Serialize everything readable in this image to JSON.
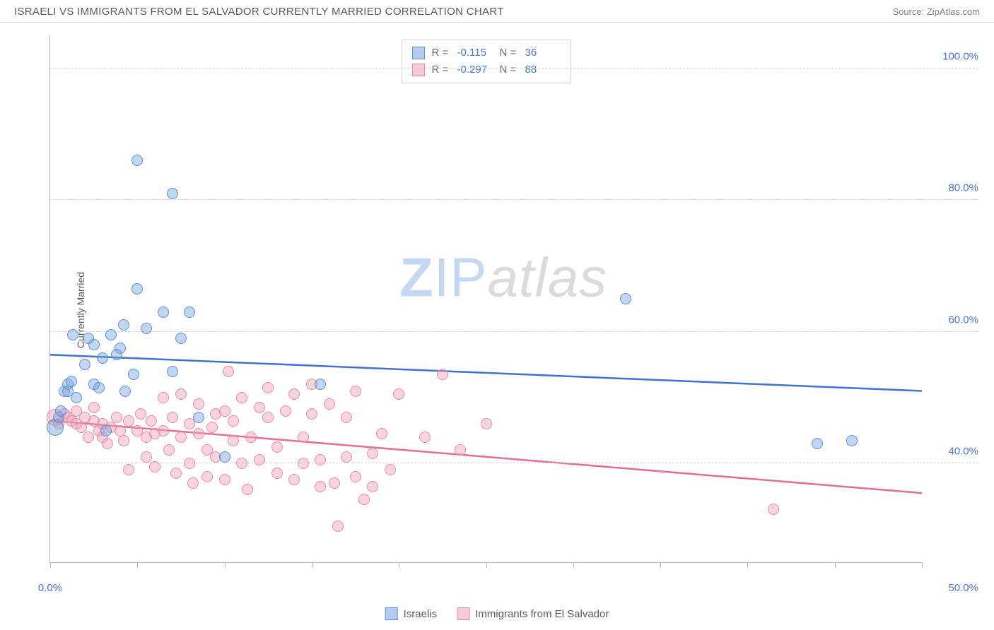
{
  "header": {
    "title": "ISRAELI VS IMMIGRANTS FROM EL SALVADOR CURRENTLY MARRIED CORRELATION CHART",
    "source_prefix": "Source: ",
    "source_name": "ZipAtlas.com"
  },
  "chart": {
    "type": "scatter",
    "ylabel": "Currently Married",
    "xlim": [
      0,
      50
    ],
    "ylim": [
      25,
      105
    ],
    "yticks": [
      40,
      60,
      80,
      100
    ],
    "ytick_labels": [
      "40.0%",
      "60.0%",
      "80.0%",
      "100.0%"
    ],
    "xticks": [
      0,
      5,
      10,
      15,
      20,
      25,
      30,
      35,
      40,
      45,
      50
    ],
    "xtick_labels": {
      "0": "0.0%",
      "50": "50.0%"
    },
    "background_color": "#ffffff",
    "grid_color": "#d4d4d4",
    "grid_dash": true,
    "axis_color": "#b5b5b5",
    "point_radius": 8,
    "point_radius_large": 12,
    "trend_line_width": 2.5,
    "series": {
      "blue": {
        "label": "Israelis",
        "fill_color": "rgba(120,163,220,0.45)",
        "stroke_color": "#5b8fd6",
        "trend_color": "#3f73cf",
        "R": "-0.115",
        "N": "36",
        "trend": {
          "y1": 56.5,
          "y2": 51.0
        },
        "points": [
          {
            "x": 0.3,
            "y": 45.5,
            "r": 12
          },
          {
            "x": 0.5,
            "y": 47.0
          },
          {
            "x": 0.6,
            "y": 48.0
          },
          {
            "x": 0.8,
            "y": 51.0
          },
          {
            "x": 1.0,
            "y": 52.0
          },
          {
            "x": 1.0,
            "y": 51.0
          },
          {
            "x": 1.2,
            "y": 52.5
          },
          {
            "x": 1.5,
            "y": 50.0
          },
          {
            "x": 1.3,
            "y": 59.5
          },
          {
            "x": 2.0,
            "y": 55.0
          },
          {
            "x": 2.2,
            "y": 59.0
          },
          {
            "x": 2.5,
            "y": 58.0
          },
          {
            "x": 2.8,
            "y": 51.5
          },
          {
            "x": 3.0,
            "y": 56.0
          },
          {
            "x": 3.2,
            "y": 45.0
          },
          {
            "x": 3.5,
            "y": 59.5
          },
          {
            "x": 4.0,
            "y": 57.5
          },
          {
            "x": 4.3,
            "y": 51.0
          },
          {
            "x": 4.2,
            "y": 61.0
          },
          {
            "x": 4.8,
            "y": 53.5
          },
          {
            "x": 5.0,
            "y": 66.5
          },
          {
            "x": 3.8,
            "y": 56.5
          },
          {
            "x": 5.0,
            "y": 86.0
          },
          {
            "x": 5.5,
            "y": 60.5
          },
          {
            "x": 6.5,
            "y": 63.0
          },
          {
            "x": 7.0,
            "y": 81.0
          },
          {
            "x": 7.0,
            "y": 54.0
          },
          {
            "x": 7.5,
            "y": 59.0
          },
          {
            "x": 8.0,
            "y": 63.0
          },
          {
            "x": 8.5,
            "y": 47.0
          },
          {
            "x": 10.0,
            "y": 41.0
          },
          {
            "x": 15.5,
            "y": 52.0
          },
          {
            "x": 33.0,
            "y": 65.0
          },
          {
            "x": 44.0,
            "y": 43.0
          },
          {
            "x": 46.0,
            "y": 43.5
          },
          {
            "x": 2.5,
            "y": 52.0
          }
        ]
      },
      "pink": {
        "label": "Immigrants from El Salvador",
        "fill_color": "rgba(239,160,180,0.45)",
        "stroke_color": "#e88aa5",
        "trend_color": "#e36f94",
        "R": "-0.297",
        "N": "88",
        "trend": {
          "y1": 46.5,
          "y2": 35.5
        },
        "points": [
          {
            "x": 0.3,
            "y": 47.0,
            "r": 12
          },
          {
            "x": 0.5,
            "y": 46.0
          },
          {
            "x": 0.8,
            "y": 47.5
          },
          {
            "x": 1.0,
            "y": 47.0
          },
          {
            "x": 1.2,
            "y": 46.5
          },
          {
            "x": 1.5,
            "y": 46.0
          },
          {
            "x": 1.5,
            "y": 48.0
          },
          {
            "x": 1.8,
            "y": 45.5
          },
          {
            "x": 2.0,
            "y": 47.0
          },
          {
            "x": 2.2,
            "y": 44.0
          },
          {
            "x": 2.5,
            "y": 46.5
          },
          {
            "x": 2.8,
            "y": 45.0
          },
          {
            "x": 2.5,
            "y": 48.5
          },
          {
            "x": 3.0,
            "y": 46.0
          },
          {
            "x": 3.3,
            "y": 43.0
          },
          {
            "x": 3.5,
            "y": 45.5
          },
          {
            "x": 3.0,
            "y": 44.0
          },
          {
            "x": 3.8,
            "y": 47.0
          },
          {
            "x": 4.0,
            "y": 45.0
          },
          {
            "x": 4.2,
            "y": 43.5
          },
          {
            "x": 4.5,
            "y": 46.5
          },
          {
            "x": 4.5,
            "y": 39.0
          },
          {
            "x": 5.0,
            "y": 45.0
          },
          {
            "x": 5.2,
            "y": 47.5
          },
          {
            "x": 5.5,
            "y": 44.0
          },
          {
            "x": 5.5,
            "y": 41.0
          },
          {
            "x": 5.8,
            "y": 46.5
          },
          {
            "x": 6.0,
            "y": 44.5
          },
          {
            "x": 6.0,
            "y": 39.5
          },
          {
            "x": 6.5,
            "y": 45.0
          },
          {
            "x": 6.5,
            "y": 50.0
          },
          {
            "x": 6.8,
            "y": 42.0
          },
          {
            "x": 7.0,
            "y": 47.0
          },
          {
            "x": 7.2,
            "y": 38.5
          },
          {
            "x": 7.5,
            "y": 44.0
          },
          {
            "x": 7.5,
            "y": 50.5
          },
          {
            "x": 8.0,
            "y": 40.0
          },
          {
            "x": 8.0,
            "y": 46.0
          },
          {
            "x": 8.2,
            "y": 37.0
          },
          {
            "x": 8.5,
            "y": 44.5
          },
          {
            "x": 8.5,
            "y": 49.0
          },
          {
            "x": 9.0,
            "y": 42.0
          },
          {
            "x": 9.0,
            "y": 38.0
          },
          {
            "x": 9.3,
            "y": 45.5
          },
          {
            "x": 9.5,
            "y": 47.5
          },
          {
            "x": 9.5,
            "y": 41.0
          },
          {
            "x": 10.0,
            "y": 48.0
          },
          {
            "x": 10.0,
            "y": 37.5
          },
          {
            "x": 10.2,
            "y": 54.0
          },
          {
            "x": 10.5,
            "y": 43.5
          },
          {
            "x": 10.5,
            "y": 46.5
          },
          {
            "x": 11.0,
            "y": 40.0
          },
          {
            "x": 11.0,
            "y": 50.0
          },
          {
            "x": 11.3,
            "y": 36.0
          },
          {
            "x": 11.5,
            "y": 44.0
          },
          {
            "x": 12.0,
            "y": 48.5
          },
          {
            "x": 12.0,
            "y": 40.5
          },
          {
            "x": 12.5,
            "y": 47.0
          },
          {
            "x": 12.5,
            "y": 51.5
          },
          {
            "x": 13.0,
            "y": 38.5
          },
          {
            "x": 13.0,
            "y": 42.5
          },
          {
            "x": 13.5,
            "y": 48.0
          },
          {
            "x": 14.0,
            "y": 50.5
          },
          {
            "x": 14.0,
            "y": 37.5
          },
          {
            "x": 14.5,
            "y": 44.0
          },
          {
            "x": 14.5,
            "y": 40.0
          },
          {
            "x": 15.0,
            "y": 47.5
          },
          {
            "x": 15.0,
            "y": 52.0
          },
          {
            "x": 15.5,
            "y": 40.5
          },
          {
            "x": 15.5,
            "y": 36.5
          },
          {
            "x": 16.0,
            "y": 49.0
          },
          {
            "x": 16.3,
            "y": 37.0
          },
          {
            "x": 16.5,
            "y": 30.5
          },
          {
            "x": 17.0,
            "y": 41.0
          },
          {
            "x": 17.0,
            "y": 47.0
          },
          {
            "x": 17.5,
            "y": 38.0
          },
          {
            "x": 17.5,
            "y": 51.0
          },
          {
            "x": 18.0,
            "y": 34.5
          },
          {
            "x": 18.5,
            "y": 41.5
          },
          {
            "x": 18.5,
            "y": 36.5
          },
          {
            "x": 19.0,
            "y": 44.5
          },
          {
            "x": 19.5,
            "y": 39.0
          },
          {
            "x": 20.0,
            "y": 50.5
          },
          {
            "x": 21.5,
            "y": 44.0
          },
          {
            "x": 22.5,
            "y": 53.5
          },
          {
            "x": 23.5,
            "y": 42.0
          },
          {
            "x": 25.0,
            "y": 46.0
          },
          {
            "x": 41.5,
            "y": 33.0
          }
        ]
      }
    },
    "stats_labels": {
      "R": "R =",
      "N": "N ="
    }
  },
  "legend": {
    "series1": "Israelis",
    "series2": "Immigrants from El Salvador"
  },
  "watermark": {
    "part1": "ZIP",
    "part2": "atlas"
  }
}
